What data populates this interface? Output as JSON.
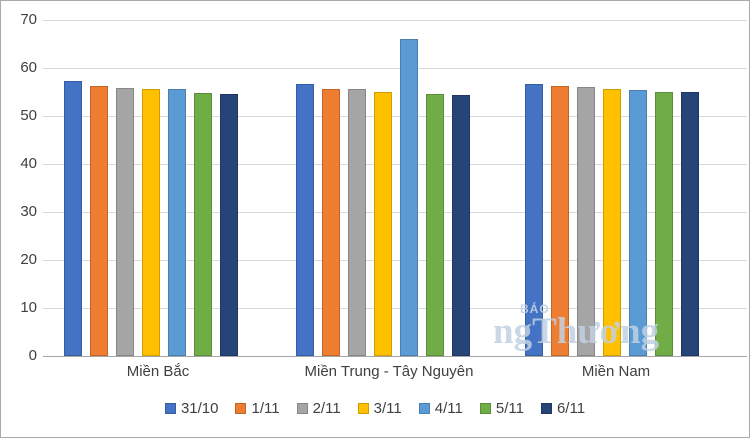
{
  "chart_data": {
    "type": "bar",
    "title": "",
    "xlabel": "",
    "ylabel": "",
    "categories": [
      "Miền Bắc",
      "Miền Trung - Tây Nguyên",
      "Miền Nam"
    ],
    "series": [
      {
        "name": "31/10",
        "color": "#4472C4",
        "values": [
          57.2,
          56.6,
          56.6
        ]
      },
      {
        "name": "1/11",
        "color": "#ED7D31",
        "values": [
          56.2,
          55.6,
          56.2
        ]
      },
      {
        "name": "2/11",
        "color": "#A5A5A5",
        "values": [
          55.8,
          55.6,
          56.0
        ]
      },
      {
        "name": "3/11",
        "color": "#FFC000",
        "values": [
          55.6,
          55.0,
          55.6
        ]
      },
      {
        "name": "4/11",
        "color": "#5B9BD5",
        "values": [
          55.6,
          66.0,
          55.5
        ]
      },
      {
        "name": "5/11",
        "color": "#70AD47",
        "values": [
          54.8,
          54.6,
          55.0
        ]
      },
      {
        "name": "6/11",
        "color": "#264478",
        "values": [
          54.6,
          54.4,
          54.9
        ]
      }
    ],
    "ylim": [
      0,
      70
    ],
    "yticks": [
      0,
      10,
      20,
      30,
      40,
      50,
      60,
      70
    ],
    "grid": true,
    "legend_position": "bottom",
    "colors": {
      "gridline": "#d9d9d9",
      "axis_line": "#a6a6a6",
      "axis_text": "#404040",
      "background": "#ffffff"
    }
  },
  "watermark": {
    "line1": "BÁO",
    "line2": "ngThương"
  }
}
